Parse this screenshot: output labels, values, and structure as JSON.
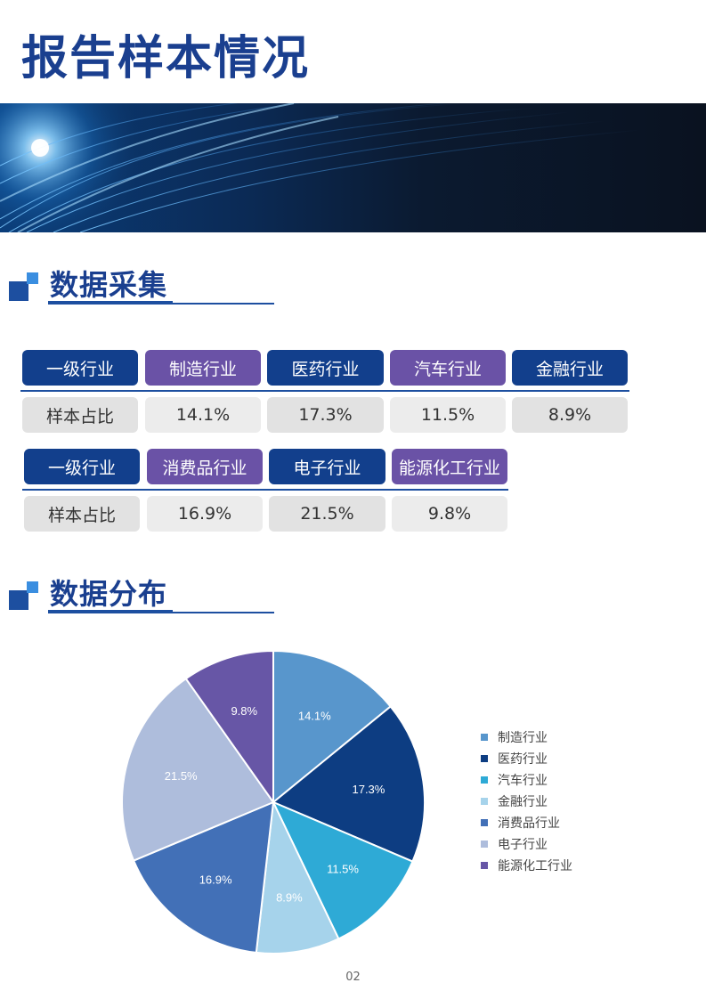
{
  "page": {
    "title": "报告样本情况",
    "page_number": "02"
  },
  "sections": {
    "collection_title": "数据采集",
    "distribution_title": "数据分布"
  },
  "table": {
    "row_header": "一级行业",
    "value_header": "样本占比",
    "group1": [
      {
        "industry": "制造行业",
        "share": "14.1%"
      },
      {
        "industry": "医药行业",
        "share": "17.3%"
      },
      {
        "industry": "汽车行业",
        "share": "11.5%"
      },
      {
        "industry": "金融行业",
        "share": "8.9%"
      }
    ],
    "group2": [
      {
        "industry": "消费品行业",
        "share": "16.9%"
      },
      {
        "industry": "电子行业",
        "share": "21.5%"
      },
      {
        "industry": "能源化工行业",
        "share": "9.8%"
      }
    ]
  },
  "colors": {
    "title": "#1a3f8f",
    "header_blue": "#123f8c",
    "header_purple": "#6a52a6"
  },
  "chart_data": {
    "type": "pie",
    "categories": [
      "制造行业",
      "医药行业",
      "汽车行业",
      "金融行业",
      "消费品行业",
      "电子行业",
      "能源化工行业"
    ],
    "values": [
      14.1,
      17.3,
      11.5,
      8.9,
      16.9,
      21.5,
      9.8
    ],
    "labels": [
      "14.1%",
      "17.3%",
      "11.5%",
      "8.9%",
      "16.9%",
      "21.5%",
      "9.8%"
    ],
    "colors": [
      "#5896cc",
      "#0d3d82",
      "#2eaad6",
      "#a6d3eb",
      "#4270b7",
      "#aebddc",
      "#6756a6"
    ],
    "legend_position": "right",
    "start_angle": "12 o'clock",
    "direction": "clockwise"
  }
}
